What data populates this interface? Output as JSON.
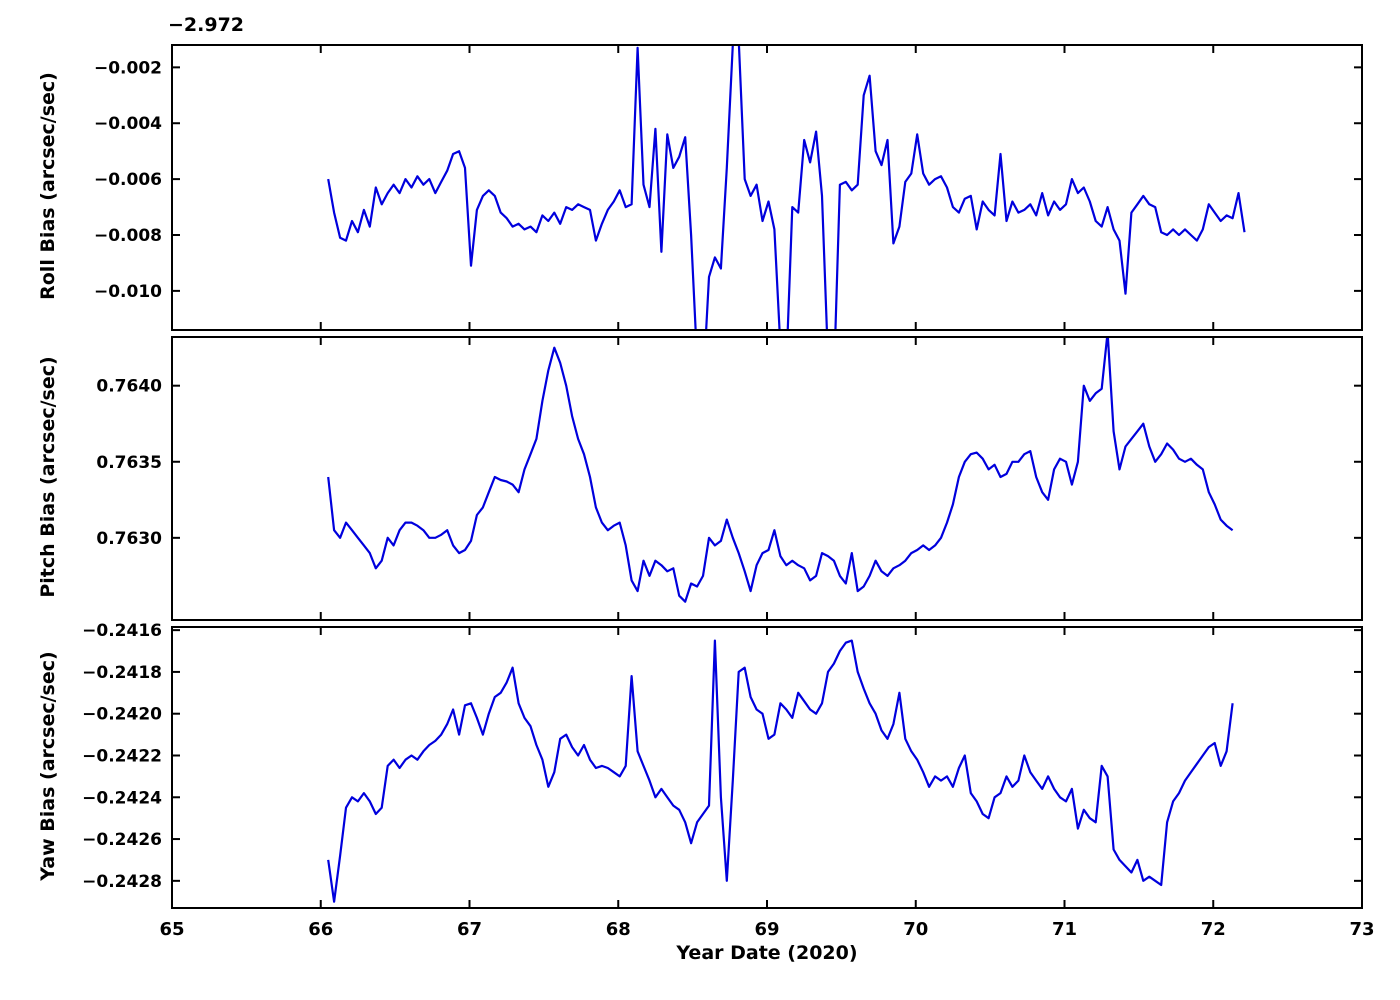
{
  "figure": {
    "background": "#ffffff",
    "line_color": "#0000dd",
    "axis_color": "#000000",
    "xlabel": "Year Date (2020)",
    "xlim": [
      65,
      73
    ],
    "x_tick_values": [
      65,
      66,
      67,
      68,
      69,
      70,
      71,
      72,
      73
    ],
    "x_tick_labels": [
      "65",
      "66",
      "67",
      "68",
      "69",
      "70",
      "71",
      "72",
      "73"
    ]
  },
  "chart_data": [
    {
      "type": "line",
      "name": "Roll Bias",
      "ylabel": "Roll Bias (arcsec/sec)",
      "offset_text": "−2.972",
      "ylim": [
        -0.0114,
        -0.0012
      ],
      "y_tick_values": [
        -0.002,
        -0.004,
        -0.006,
        -0.008,
        -0.01
      ],
      "y_tick_labels": [
        "−0.002",
        "−0.004",
        "−0.006",
        "−0.008",
        "−0.010"
      ],
      "x": {
        "start": 66.05,
        "step": 0.04
      },
      "y": [
        -0.006,
        -0.0072,
        -0.0081,
        -0.0082,
        -0.0075,
        -0.0079,
        -0.0071,
        -0.0077,
        -0.0063,
        -0.0069,
        -0.0065,
        -0.0062,
        -0.0065,
        -0.006,
        -0.0063,
        -0.0059,
        -0.0062,
        -0.006,
        -0.0065,
        -0.0061,
        -0.0057,
        -0.0051,
        -0.005,
        -0.0056,
        -0.0091,
        -0.0071,
        -0.0066,
        -0.0064,
        -0.0066,
        -0.0072,
        -0.0074,
        -0.0077,
        -0.0076,
        -0.0078,
        -0.0077,
        -0.0079,
        -0.0073,
        -0.0075,
        -0.0072,
        -0.0076,
        -0.007,
        -0.0071,
        -0.0069,
        -0.007,
        -0.0071,
        -0.0082,
        -0.0076,
        -0.0071,
        -0.0068,
        -0.0064,
        -0.007,
        -0.0069,
        -0.0013,
        -0.0062,
        -0.007,
        -0.0042,
        -0.0086,
        -0.0044,
        -0.0056,
        -0.0052,
        -0.0045,
        -0.008,
        -0.0125,
        -0.0135,
        -0.0095,
        -0.0088,
        -0.0092,
        -0.0056,
        -0.0012,
        -0.001,
        -0.006,
        -0.0066,
        -0.0062,
        -0.0075,
        -0.0068,
        -0.0078,
        -0.012,
        -0.0128,
        -0.007,
        -0.0072,
        -0.0046,
        -0.0054,
        -0.0043,
        -0.0066,
        -0.0125,
        -0.0132,
        -0.0062,
        -0.0061,
        -0.0064,
        -0.0062,
        -0.003,
        -0.0023,
        -0.005,
        -0.0055,
        -0.0046,
        -0.0083,
        -0.0077,
        -0.0061,
        -0.0058,
        -0.0044,
        -0.0058,
        -0.0062,
        -0.006,
        -0.0059,
        -0.0063,
        -0.007,
        -0.0072,
        -0.0067,
        -0.0066,
        -0.0078,
        -0.0068,
        -0.0071,
        -0.0073,
        -0.0051,
        -0.0075,
        -0.0068,
        -0.0072,
        -0.0071,
        -0.0069,
        -0.0073,
        -0.0065,
        -0.0073,
        -0.0068,
        -0.0071,
        -0.0069,
        -0.006,
        -0.0065,
        -0.0063,
        -0.0068,
        -0.0075,
        -0.0077,
        -0.007,
        -0.0078,
        -0.0082,
        -0.0101,
        -0.0072,
        -0.0069,
        -0.0066,
        -0.0069,
        -0.007,
        -0.0079,
        -0.008,
        -0.0078,
        -0.008,
        -0.0078,
        -0.008,
        -0.0082,
        -0.0078,
        -0.0069,
        -0.0072,
        -0.0075,
        -0.0073,
        -0.0074,
        -0.0065,
        -0.0079
      ]
    },
    {
      "type": "line",
      "name": "Pitch Bias",
      "ylabel": "Pitch Bias (arcsec/sec)",
      "offset_text": "",
      "ylim": [
        0.76246,
        0.76432
      ],
      "y_tick_values": [
        0.764,
        0.7635,
        0.763
      ],
      "y_tick_labels": [
        "0.7640",
        "0.7635",
        "0.7630"
      ],
      "x": {
        "start": 66.05,
        "step": 0.04
      },
      "y": [
        0.7634,
        0.76305,
        0.763,
        0.7631,
        0.76305,
        0.763,
        0.76295,
        0.7629,
        0.7628,
        0.76285,
        0.763,
        0.76295,
        0.76305,
        0.7631,
        0.7631,
        0.76308,
        0.76305,
        0.763,
        0.763,
        0.76302,
        0.76305,
        0.76295,
        0.7629,
        0.76292,
        0.76298,
        0.76315,
        0.7632,
        0.7633,
        0.7634,
        0.76338,
        0.76337,
        0.76335,
        0.7633,
        0.76345,
        0.76355,
        0.76365,
        0.7639,
        0.7641,
        0.76425,
        0.76415,
        0.764,
        0.7638,
        0.76365,
        0.76355,
        0.7634,
        0.7632,
        0.7631,
        0.76305,
        0.76308,
        0.7631,
        0.76295,
        0.76272,
        0.76265,
        0.76285,
        0.76275,
        0.76285,
        0.76282,
        0.76278,
        0.7628,
        0.76262,
        0.76258,
        0.7627,
        0.76268,
        0.76275,
        0.763,
        0.76295,
        0.76298,
        0.76312,
        0.763,
        0.7629,
        0.76278,
        0.76265,
        0.76282,
        0.7629,
        0.76292,
        0.76305,
        0.76288,
        0.76282,
        0.76285,
        0.76282,
        0.7628,
        0.76272,
        0.76275,
        0.7629,
        0.76288,
        0.76285,
        0.76275,
        0.7627,
        0.7629,
        0.76265,
        0.76268,
        0.76275,
        0.76285,
        0.76278,
        0.76275,
        0.7628,
        0.76282,
        0.76285,
        0.7629,
        0.76292,
        0.76295,
        0.76292,
        0.76295,
        0.763,
        0.7631,
        0.76322,
        0.7634,
        0.7635,
        0.76355,
        0.76356,
        0.76352,
        0.76345,
        0.76348,
        0.7634,
        0.76342,
        0.7635,
        0.7635,
        0.76355,
        0.76357,
        0.7634,
        0.7633,
        0.76325,
        0.76345,
        0.76352,
        0.7635,
        0.76335,
        0.7635,
        0.764,
        0.7639,
        0.76395,
        0.76398,
        0.76435,
        0.7637,
        0.76345,
        0.7636,
        0.76365,
        0.7637,
        0.76375,
        0.7636,
        0.7635,
        0.76355,
        0.76362,
        0.76358,
        0.76352,
        0.7635,
        0.76352,
        0.76348,
        0.76345,
        0.7633,
        0.76322,
        0.76312,
        0.76308,
        0.76305
      ]
    },
    {
      "type": "line",
      "name": "Yaw Bias",
      "ylabel": "Yaw Bias (arcsec/sec)",
      "offset_text": "",
      "ylim": [
        -0.24293,
        -0.241585
      ],
      "y_tick_values": [
        -0.2416,
        -0.2418,
        -0.242,
        -0.2422,
        -0.2424,
        -0.2426,
        -0.2428
      ],
      "y_tick_labels": [
        "−0.2416",
        "−0.2418",
        "−0.2420",
        "−0.2422",
        "−0.2424",
        "−0.2426",
        "−0.2428"
      ],
      "x": {
        "start": 66.05,
        "step": 0.04
      },
      "y": [
        -0.2427,
        -0.2429,
        -0.24268,
        -0.24245,
        -0.2424,
        -0.24242,
        -0.24238,
        -0.24242,
        -0.24248,
        -0.24245,
        -0.24225,
        -0.24222,
        -0.24226,
        -0.24222,
        -0.2422,
        -0.24222,
        -0.24218,
        -0.24215,
        -0.24213,
        -0.2421,
        -0.24205,
        -0.24198,
        -0.2421,
        -0.24196,
        -0.24195,
        -0.24202,
        -0.2421,
        -0.242,
        -0.24192,
        -0.2419,
        -0.24185,
        -0.24178,
        -0.24195,
        -0.24202,
        -0.24206,
        -0.24215,
        -0.24222,
        -0.24235,
        -0.24228,
        -0.24212,
        -0.2421,
        -0.24216,
        -0.2422,
        -0.24215,
        -0.24222,
        -0.24226,
        -0.24225,
        -0.24226,
        -0.24228,
        -0.2423,
        -0.24225,
        -0.24182,
        -0.24218,
        -0.24225,
        -0.24232,
        -0.2424,
        -0.24236,
        -0.2424,
        -0.24244,
        -0.24246,
        -0.24252,
        -0.24262,
        -0.24252,
        -0.24248,
        -0.24244,
        -0.24165,
        -0.2424,
        -0.2428,
        -0.24232,
        -0.2418,
        -0.24178,
        -0.24192,
        -0.24198,
        -0.242,
        -0.24212,
        -0.2421,
        -0.24195,
        -0.24198,
        -0.24202,
        -0.2419,
        -0.24194,
        -0.24198,
        -0.242,
        -0.24195,
        -0.2418,
        -0.24176,
        -0.2417,
        -0.24166,
        -0.24165,
        -0.2418,
        -0.24188,
        -0.24195,
        -0.242,
        -0.24208,
        -0.24212,
        -0.24205,
        -0.2419,
        -0.24212,
        -0.24218,
        -0.24222,
        -0.24228,
        -0.24235,
        -0.2423,
        -0.24232,
        -0.2423,
        -0.24235,
        -0.24226,
        -0.2422,
        -0.24238,
        -0.24242,
        -0.24248,
        -0.2425,
        -0.2424,
        -0.24238,
        -0.2423,
        -0.24235,
        -0.24232,
        -0.2422,
        -0.24228,
        -0.24232,
        -0.24236,
        -0.2423,
        -0.24236,
        -0.2424,
        -0.24242,
        -0.24236,
        -0.24255,
        -0.24246,
        -0.2425,
        -0.24252,
        -0.24225,
        -0.2423,
        -0.24265,
        -0.2427,
        -0.24273,
        -0.24276,
        -0.2427,
        -0.2428,
        -0.24278,
        -0.2428,
        -0.24282,
        -0.24252,
        -0.24242,
        -0.24238,
        -0.24232,
        -0.24228,
        -0.24224,
        -0.2422,
        -0.24216,
        -0.24214,
        -0.24225,
        -0.24218,
        -0.24195
      ]
    }
  ]
}
